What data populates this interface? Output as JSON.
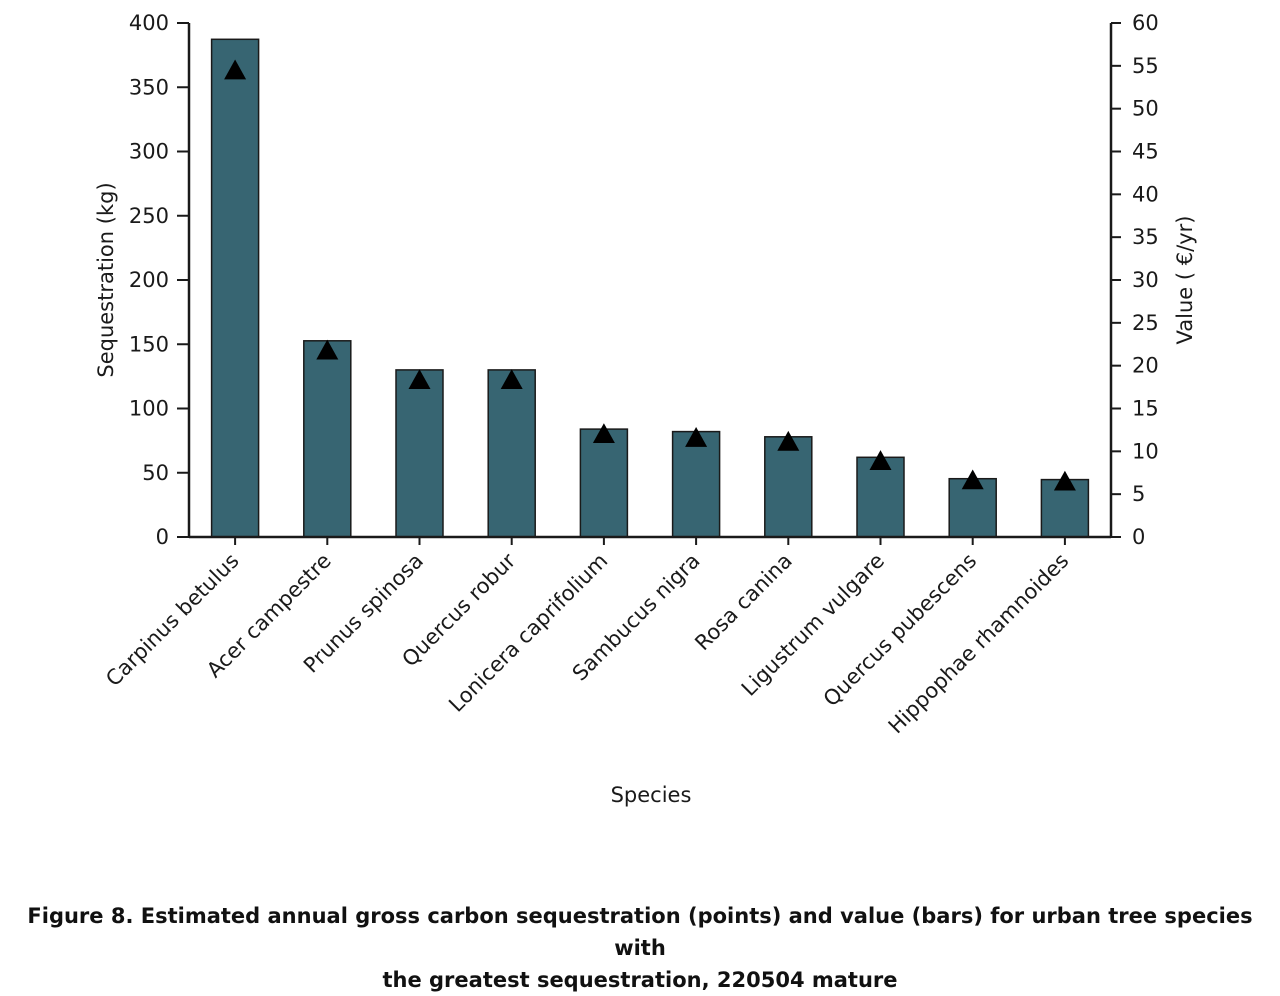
{
  "chart_data": {
    "type": "bar",
    "categories": [
      "Carpinus betulus",
      "Acer campestre",
      "Prunus spinosa",
      "Quercus robur",
      "Lonicera caprifolium",
      "Sambucus nigra",
      "Rosa canina",
      "Ligustrum vulgare",
      "Quercus pubescens",
      "Hippophae rhamnoides"
    ],
    "series": [
      {
        "type": "bar",
        "axis": "right",
        "values": [
          58.1,
          22.9,
          19.5,
          19.5,
          12.6,
          12.3,
          11.7,
          9.3,
          6.8,
          6.7
        ]
      },
      {
        "type": "scatter",
        "marker": "triangle",
        "axis": "left",
        "values": [
          363,
          145,
          122,
          122,
          80,
          77,
          74,
          59,
          44,
          43
        ]
      }
    ],
    "xlabel": "Species",
    "ylabel": "Sequestration (kg)",
    "y2label": "Value ( €/yr)",
    "ylim": [
      0,
      400
    ],
    "y2lim": [
      0,
      60
    ],
    "yticks": [
      "0",
      "50",
      "100",
      "150",
      "200",
      "250",
      "300",
      "350",
      "400"
    ],
    "y2ticks": [
      "0",
      "5",
      "10",
      "15",
      "20",
      "25",
      "30",
      "35",
      "40",
      "45",
      "50",
      "55",
      "60"
    ],
    "grid": false,
    "colors": {
      "bar": "#376572",
      "bar_edge": "#1a1a1a",
      "marker": "#000000",
      "axis": "#1a1a1a"
    }
  },
  "caption": {
    "line1": "Figure 8. Estimated annual gross carbon sequestration (points) and value (bars) for urban tree species with",
    "line2": "the greatest sequestration, 220504 mature"
  }
}
